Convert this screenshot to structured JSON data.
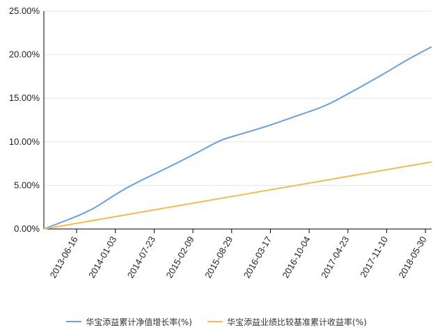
{
  "chart_data": {
    "type": "line",
    "title": "",
    "xlabel": "",
    "ylabel": "",
    "x_ticks": [
      "2013-06-16",
      "2014-01-03",
      "2014-07-23",
      "2015-02-09",
      "2015-08-29",
      "2016-03-17",
      "2016-10-04",
      "2017-04-23",
      "2017-11-10",
      "2018-05-30"
    ],
    "y_ticks": [
      "0.00%",
      "5.00%",
      "10.00%",
      "15.00%",
      "20.00%",
      "25.00%"
    ],
    "ylim": [
      0,
      25
    ],
    "xlim": [
      "2012-12-28",
      "2018-07-01"
    ],
    "grid": "horizontal",
    "legend_position": "bottom",
    "series": [
      {
        "name": "华宝添益累计净值增长率(%)",
        "color": "#6a9fe6",
        "x": [
          "2012-12-28",
          "2013-08-20",
          "2013-12-01",
          "2014-03-15",
          "2014-07-23",
          "2014-12-01",
          "2015-04-01",
          "2015-07-01",
          "2015-10-01",
          "2016-03-17",
          "2016-08-01",
          "2016-12-26",
          "2017-04-23",
          "2017-08-15",
          "2017-11-10",
          "2018-03-01",
          "2018-07-01"
        ],
        "values": [
          0.0,
          2.0,
          3.5,
          4.9,
          6.3,
          7.7,
          9.1,
          10.2,
          10.8,
          11.9,
          13.0,
          14.1,
          15.5,
          16.9,
          18.0,
          19.5,
          20.9
        ]
      },
      {
        "name": "华宝添益业绩比较基准累计收益率(%)",
        "color": "#f6bb4f",
        "x": [
          "2012-12-28",
          "2018-07-01"
        ],
        "values": [
          0.0,
          7.7
        ]
      }
    ]
  }
}
